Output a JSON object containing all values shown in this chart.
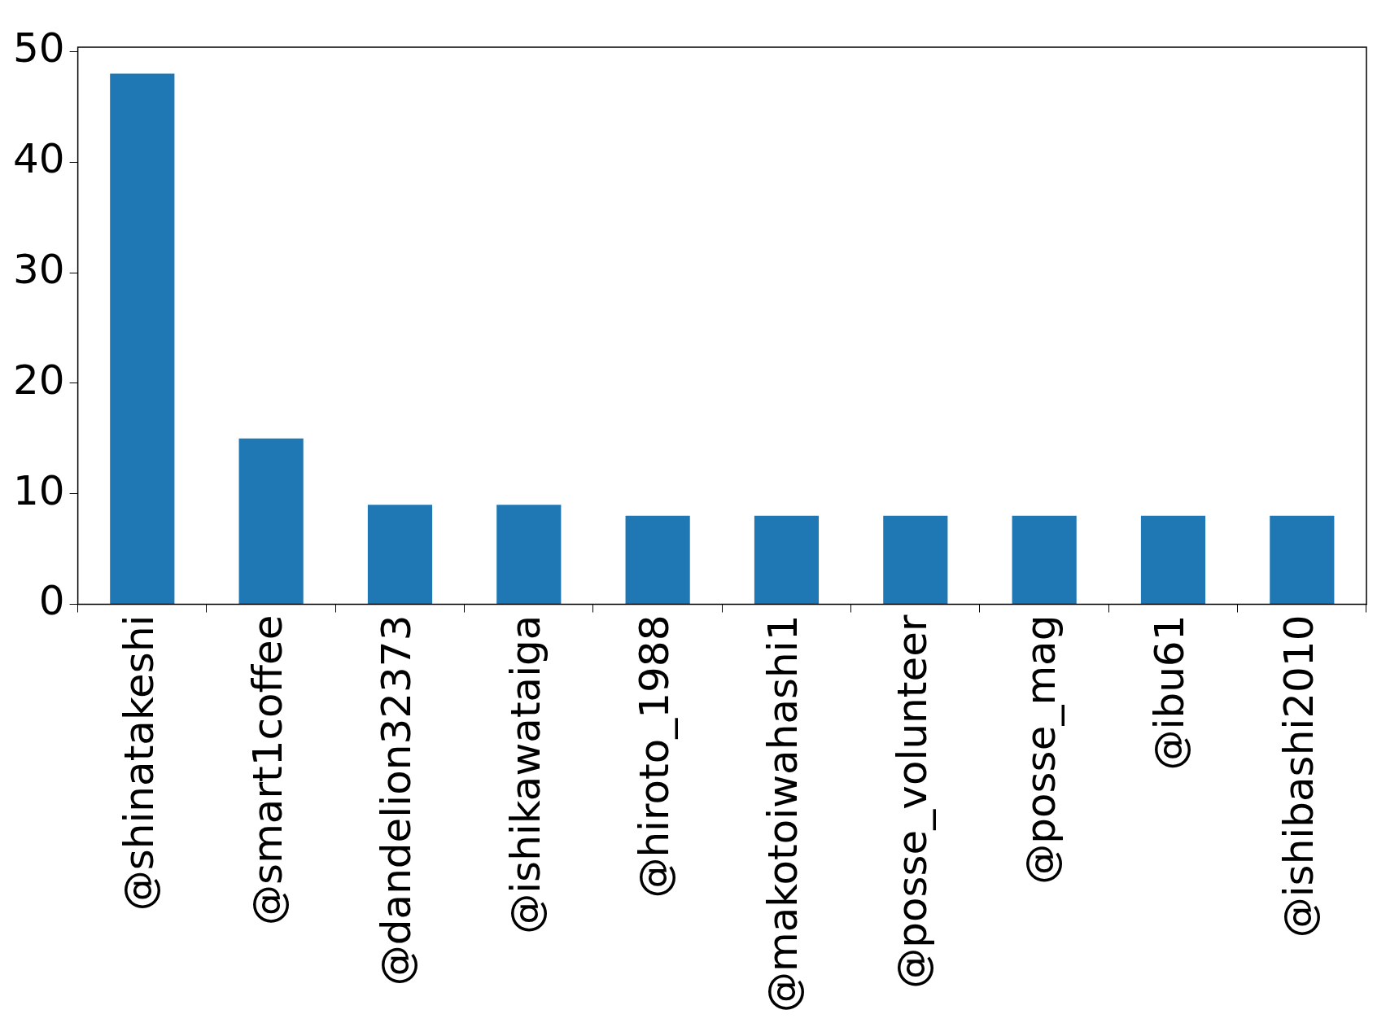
{
  "chart_data": {
    "type": "bar",
    "categories": [
      "@shinatakeshi",
      "@smart1coffee",
      "@dandelion32373",
      "@ishikawataiga",
      "@hiroto_1988",
      "@makotoiwahashi1",
      "@posse_volunteer",
      "@posse_mag",
      "@ibu61",
      "@ishibashi2010"
    ],
    "values": [
      48,
      15,
      9,
      9,
      8,
      8,
      8,
      8,
      8,
      8
    ],
    "color": "#1f77b4",
    "ylim": [
      0,
      50.4
    ],
    "yticks": [
      0,
      10,
      20,
      30,
      40,
      50
    ],
    "grid": false,
    "legend": false
  }
}
